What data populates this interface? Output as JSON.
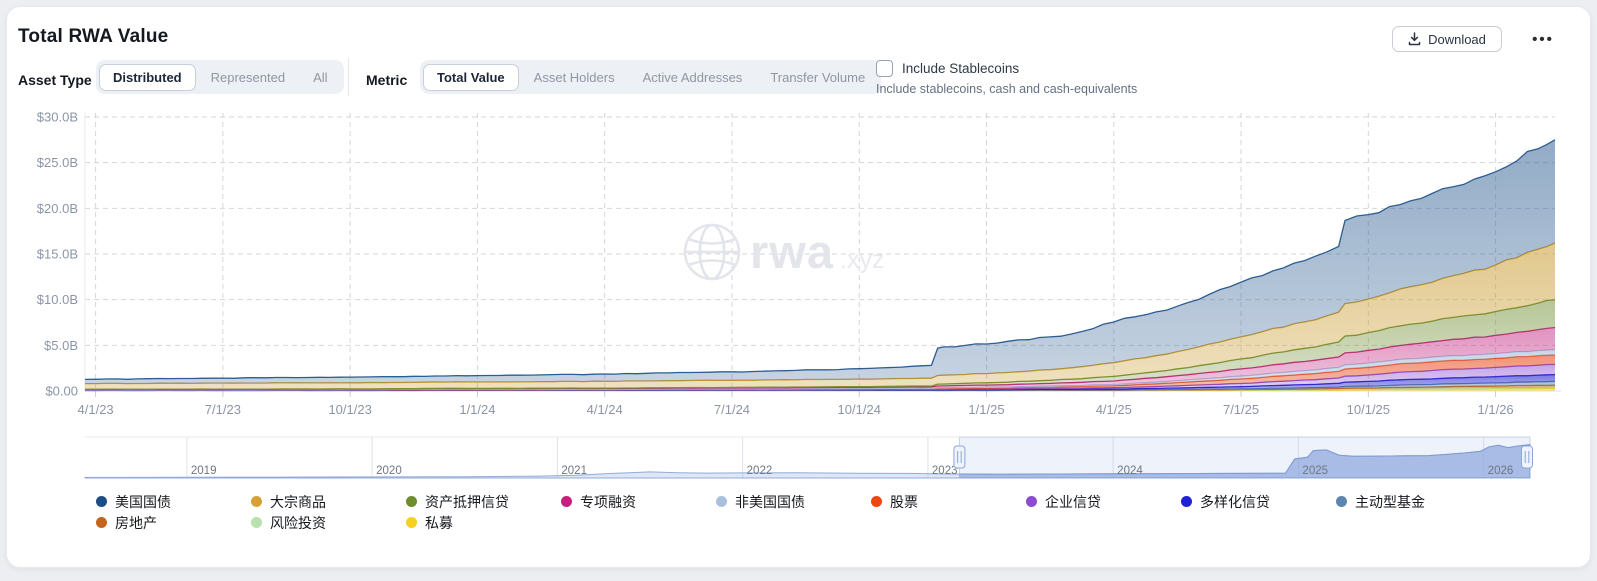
{
  "page": {
    "title": "Total RWA Value"
  },
  "toolbar": {
    "download_label": "Download",
    "more_label": "•••"
  },
  "filters": {
    "asset_type": {
      "label": "Asset Type",
      "options": [
        "Distributed",
        "Represented",
        "All"
      ],
      "selected": "Distributed"
    },
    "metric": {
      "label": "Metric",
      "options": [
        "Total Value",
        "Asset Holders",
        "Active Addresses",
        "Transfer Volume"
      ],
      "selected": "Total Value"
    },
    "stablecoins": {
      "label": "Include Stablecoins",
      "sublabel": "Include stablecoins, cash and cash-equivalents",
      "checked": false
    }
  },
  "watermark": {
    "text": "rwa",
    "suffix": ".xyz"
  },
  "chart_data": {
    "type": "area",
    "stacking": "normal",
    "stack_top_first": true,
    "title": "Total RWA Value",
    "x_unit": "months since 2023-04-01",
    "xlim": [
      -0.25,
      34.4
    ],
    "ylim": [
      0,
      30
    ],
    "grid": true,
    "y_ticks": [
      {
        "v": 0,
        "label": "$0.00"
      },
      {
        "v": 5,
        "label": "$5.0B"
      },
      {
        "v": 10,
        "label": "$10.0B"
      },
      {
        "v": 15,
        "label": "$15.0B"
      },
      {
        "v": 20,
        "label": "$20.0B"
      },
      {
        "v": 25,
        "label": "$25.0B"
      },
      {
        "v": 30,
        "label": "$30.0B"
      }
    ],
    "x_ticks": [
      {
        "x": 0,
        "label": "4/1/23"
      },
      {
        "x": 3,
        "label": "7/1/23"
      },
      {
        "x": 6,
        "label": "10/1/23"
      },
      {
        "x": 9,
        "label": "1/1/24"
      },
      {
        "x": 12,
        "label": "4/1/24"
      },
      {
        "x": 15,
        "label": "7/1/24"
      },
      {
        "x": 18,
        "label": "10/1/24"
      },
      {
        "x": 21,
        "label": "1/1/25"
      },
      {
        "x": 24,
        "label": "4/1/25"
      },
      {
        "x": 27,
        "label": "7/1/25"
      },
      {
        "x": 30,
        "label": "10/1/25"
      },
      {
        "x": 33,
        "label": "1/1/26"
      }
    ],
    "x": [
      -0.25,
      0,
      1,
      2,
      3,
      4,
      5,
      6,
      7,
      8,
      9,
      10,
      11,
      12,
      13,
      14,
      15,
      16,
      17,
      18,
      19,
      19.7,
      19.85,
      20,
      21,
      22,
      23,
      24,
      25,
      26,
      27,
      28,
      29,
      29.3,
      29.45,
      30,
      31,
      32,
      33,
      34,
      34.4
    ],
    "series": [
      {
        "name": "美国国债",
        "color": "#2d5d92",
        "dot": "#1b4e84",
        "fill_opacity": 0.52,
        "values": [
          0.46,
          0.47,
          0.5,
          0.52,
          0.55,
          0.57,
          0.59,
          0.62,
          0.64,
          0.66,
          0.7,
          0.73,
          0.77,
          0.8,
          0.84,
          0.88,
          0.93,
          0.99,
          1.06,
          1.14,
          1.25,
          1.4,
          3.0,
          3.1,
          3.25,
          3.45,
          3.7,
          4.45,
          4.8,
          5.2,
          6.0,
          6.5,
          7.0,
          7.2,
          9.1,
          9.25,
          9.4,
          9.75,
          10.2,
          11.0,
          11.3
        ]
      },
      {
        "name": "大宗商品",
        "color": "#c99a2e",
        "dot": "#d6a234",
        "fill_opacity": 0.55,
        "values": [
          0.62,
          0.62,
          0.63,
          0.64,
          0.65,
          0.66,
          0.66,
          0.67,
          0.68,
          0.69,
          0.7,
          0.71,
          0.73,
          0.74,
          0.75,
          0.77,
          0.78,
          0.79,
          0.81,
          0.82,
          0.84,
          0.85,
          0.95,
          0.96,
          1.0,
          1.1,
          1.25,
          1.5,
          1.75,
          2.05,
          2.4,
          2.7,
          3.1,
          3.25,
          3.55,
          3.65,
          4.1,
          4.55,
          5.1,
          5.9,
          6.2
        ]
      },
      {
        "name": "资产抵押信贷",
        "color": "#6f8d2f",
        "dot": "#6f8d2f",
        "fill_opacity": 0.5,
        "values": [
          0.01,
          0.01,
          0.01,
          0.02,
          0.02,
          0.02,
          0.02,
          0.02,
          0.03,
          0.03,
          0.03,
          0.03,
          0.04,
          0.04,
          0.04,
          0.05,
          0.05,
          0.06,
          0.07,
          0.08,
          0.09,
          0.1,
          0.2,
          0.21,
          0.25,
          0.3,
          0.38,
          0.5,
          0.65,
          0.85,
          1.1,
          1.3,
          1.55,
          1.65,
          1.85,
          1.95,
          2.2,
          2.4,
          2.6,
          2.9,
          3.05
        ]
      },
      {
        "name": "专项融资",
        "color": "#c2247f",
        "dot": "#c51f80",
        "fill_opacity": 0.5,
        "values": [
          0.04,
          0.04,
          0.04,
          0.05,
          0.05,
          0.05,
          0.06,
          0.06,
          0.06,
          0.07,
          0.07,
          0.07,
          0.08,
          0.08,
          0.09,
          0.09,
          0.1,
          0.11,
          0.12,
          0.13,
          0.14,
          0.15,
          0.2,
          0.21,
          0.25,
          0.28,
          0.33,
          0.4,
          0.5,
          0.62,
          0.8,
          0.95,
          1.1,
          1.15,
          1.3,
          1.4,
          1.6,
          1.8,
          2.0,
          2.3,
          2.45
        ]
      },
      {
        "name": "非美国国债",
        "color": "#a9c0dd",
        "dot": "#a9c0dd",
        "fill_opacity": 0.65,
        "values": [
          0.02,
          0.02,
          0.02,
          0.02,
          0.02,
          0.02,
          0.02,
          0.02,
          0.03,
          0.03,
          0.03,
          0.03,
          0.03,
          0.03,
          0.03,
          0.04,
          0.04,
          0.04,
          0.04,
          0.04,
          0.04,
          0.04,
          0.05,
          0.05,
          0.06,
          0.07,
          0.09,
          0.12,
          0.17,
          0.24,
          0.3,
          0.36,
          0.4,
          0.42,
          0.45,
          0.46,
          0.48,
          0.5,
          0.52,
          0.55,
          0.55
        ]
      },
      {
        "name": "股票",
        "color": "#e8491a",
        "dot": "#ee4712",
        "fill_opacity": 0.6,
        "values": [
          0.02,
          0.02,
          0.02,
          0.02,
          0.02,
          0.02,
          0.02,
          0.02,
          0.02,
          0.03,
          0.03,
          0.03,
          0.04,
          0.04,
          0.04,
          0.05,
          0.05,
          0.06,
          0.06,
          0.07,
          0.08,
          0.08,
          0.1,
          0.1,
          0.12,
          0.14,
          0.18,
          0.22,
          0.3,
          0.4,
          0.5,
          0.6,
          0.7,
          0.73,
          0.8,
          0.85,
          0.92,
          0.97,
          1.0,
          1.05,
          1.05
        ]
      },
      {
        "name": "企业信贷",
        "color": "#8c4cd0",
        "dot": "#8c4cd0",
        "fill_opacity": 0.5,
        "values": [
          0.01,
          0.01,
          0.01,
          0.01,
          0.01,
          0.01,
          0.02,
          0.02,
          0.02,
          0.02,
          0.02,
          0.02,
          0.02,
          0.02,
          0.03,
          0.03,
          0.03,
          0.03,
          0.04,
          0.04,
          0.05,
          0.05,
          0.07,
          0.07,
          0.08,
          0.1,
          0.12,
          0.15,
          0.2,
          0.28,
          0.35,
          0.45,
          0.55,
          0.58,
          0.65,
          0.7,
          0.85,
          0.95,
          1.0,
          1.08,
          1.1
        ]
      },
      {
        "name": "多样化信贷",
        "color": "#2222cc",
        "dot": "#2020d6",
        "fill_opacity": 0.6,
        "values": [
          0.02,
          0.02,
          0.02,
          0.02,
          0.02,
          0.02,
          0.02,
          0.02,
          0.02,
          0.02,
          0.02,
          0.02,
          0.02,
          0.02,
          0.03,
          0.03,
          0.03,
          0.03,
          0.03,
          0.03,
          0.04,
          0.04,
          0.05,
          0.05,
          0.06,
          0.07,
          0.08,
          0.1,
          0.14,
          0.2,
          0.25,
          0.32,
          0.4,
          0.42,
          0.48,
          0.52,
          0.6,
          0.65,
          0.7,
          0.74,
          0.75
        ]
      },
      {
        "name": "主动型基金",
        "color": "#5d85ad",
        "dot": "#5d85ad",
        "fill_opacity": 0.55,
        "values": [
          0.01,
          0.01,
          0.01,
          0.01,
          0.01,
          0.01,
          0.01,
          0.01,
          0.01,
          0.02,
          0.02,
          0.02,
          0.02,
          0.02,
          0.02,
          0.02,
          0.02,
          0.02,
          0.02,
          0.02,
          0.02,
          0.02,
          0.02,
          0.02,
          0.02,
          0.03,
          0.03,
          0.03,
          0.04,
          0.05,
          0.06,
          0.1,
          0.14,
          0.15,
          0.18,
          0.2,
          0.26,
          0.3,
          0.34,
          0.38,
          0.4
        ]
      },
      {
        "name": "房地产",
        "color": "#c4651f",
        "dot": "#c4651f",
        "fill_opacity": 0.55,
        "values": [
          0.01,
          0.01,
          0.01,
          0.01,
          0.01,
          0.01,
          0.01,
          0.01,
          0.01,
          0.01,
          0.01,
          0.01,
          0.01,
          0.01,
          0.01,
          0.01,
          0.01,
          0.01,
          0.01,
          0.01,
          0.01,
          0.01,
          0.01,
          0.01,
          0.01,
          0.02,
          0.02,
          0.02,
          0.03,
          0.04,
          0.05,
          0.07,
          0.09,
          0.1,
          0.11,
          0.12,
          0.15,
          0.18,
          0.2,
          0.24,
          0.25
        ]
      },
      {
        "name": "风险投资",
        "color": "#b7e2ae",
        "dot": "#b7e2ae",
        "fill_opacity": 0.7,
        "values": [
          0.01,
          0.01,
          0.01,
          0.01,
          0.01,
          0.01,
          0.01,
          0.01,
          0.01,
          0.01,
          0.01,
          0.01,
          0.01,
          0.01,
          0.01,
          0.01,
          0.01,
          0.01,
          0.01,
          0.01,
          0.01,
          0.01,
          0.01,
          0.01,
          0.01,
          0.01,
          0.01,
          0.01,
          0.02,
          0.02,
          0.03,
          0.03,
          0.04,
          0.04,
          0.05,
          0.05,
          0.06,
          0.07,
          0.08,
          0.09,
          0.1
        ]
      },
      {
        "name": "私募",
        "color": "#e8c70e",
        "dot": "#f5d020",
        "fill_opacity": 0.6,
        "values": [
          0.04,
          0.04,
          0.04,
          0.04,
          0.04,
          0.04,
          0.04,
          0.04,
          0.04,
          0.05,
          0.05,
          0.05,
          0.05,
          0.05,
          0.05,
          0.05,
          0.05,
          0.05,
          0.05,
          0.05,
          0.05,
          0.05,
          0.04,
          0.04,
          0.04,
          0.05,
          0.05,
          0.05,
          0.06,
          0.07,
          0.08,
          0.1,
          0.12,
          0.13,
          0.15,
          0.16,
          0.2,
          0.24,
          0.26,
          0.29,
          0.3
        ]
      }
    ]
  },
  "navigator": {
    "range": [
      2018.45,
      2026.25
    ],
    "selected_range": [
      2023.17,
      2026.25
    ],
    "year_ticks": [
      2019,
      2020,
      2021,
      2022,
      2023,
      2024,
      2025,
      2026
    ],
    "profile": [
      [
        2018.45,
        0.015
      ],
      [
        2019,
        0.02
      ],
      [
        2019.5,
        0.025
      ],
      [
        2020,
        0.03
      ],
      [
        2020.5,
        0.035
      ],
      [
        2020.9,
        0.05
      ],
      [
        2021.1,
        0.07
      ],
      [
        2021.3,
        0.12
      ],
      [
        2021.5,
        0.16
      ],
      [
        2021.65,
        0.14
      ],
      [
        2021.8,
        0.13
      ],
      [
        2022,
        0.135
      ],
      [
        2022.3,
        0.14
      ],
      [
        2022.6,
        0.125
      ],
      [
        2022.9,
        0.12
      ],
      [
        2023.1,
        0.105
      ],
      [
        2023.4,
        0.1
      ],
      [
        2023.7,
        0.105
      ],
      [
        2024,
        0.11
      ],
      [
        2024.3,
        0.115
      ],
      [
        2024.6,
        0.12
      ],
      [
        2024.88,
        0.125
      ],
      [
        2024.93,
        0.13
      ],
      [
        2024.98,
        0.5
      ],
      [
        2025.05,
        0.55
      ],
      [
        2025.08,
        0.72
      ],
      [
        2025.15,
        0.74
      ],
      [
        2025.22,
        0.6
      ],
      [
        2025.3,
        0.57
      ],
      [
        2025.4,
        0.575
      ],
      [
        2025.5,
        0.58
      ],
      [
        2025.6,
        0.585
      ],
      [
        2025.7,
        0.59
      ],
      [
        2025.8,
        0.62
      ],
      [
        2025.9,
        0.66
      ],
      [
        2025.98,
        0.7
      ],
      [
        2026.03,
        0.82
      ],
      [
        2026.08,
        0.86
      ],
      [
        2026.13,
        0.8
      ],
      [
        2026.18,
        0.84
      ],
      [
        2026.25,
        0.88
      ]
    ]
  }
}
